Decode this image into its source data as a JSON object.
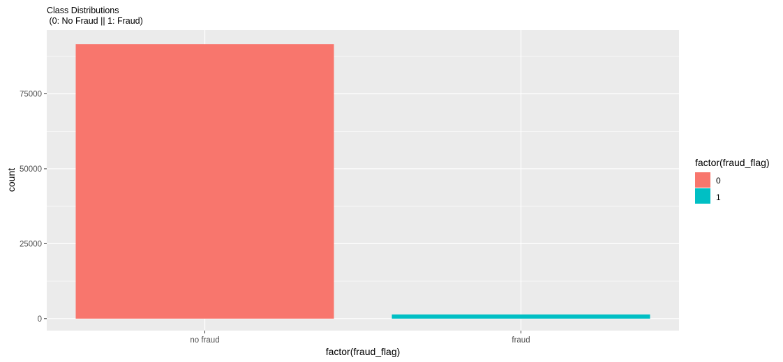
{
  "chart_data": {
    "type": "bar",
    "title": "Class Distributions",
    "subtitle": " (0: No Fraud || 1: Fraud)",
    "xlabel": "factor(fraud_flag)",
    "ylabel": "count",
    "categories": [
      "no fraud",
      "fraud"
    ],
    "values": [
      91600,
      1400
    ],
    "fill_groups": [
      "0",
      "1"
    ],
    "ylim": [
      -4000,
      96300
    ],
    "yticks": [
      0,
      25000,
      50000,
      75000
    ],
    "ytick_labels": [
      "0",
      "25000",
      "50000",
      "75000"
    ],
    "grid": true,
    "legend": {
      "title": "factor(fraud_flag)",
      "placement": "right",
      "entries": [
        {
          "label": "0",
          "color": "#F8766D"
        },
        {
          "label": "1",
          "color": "#00BFC4"
        }
      ]
    },
    "colors": {
      "panel": "#EBEBEB",
      "grid": "#FFFFFF",
      "bar_0": "#F8766D",
      "bar_1": "#00BFC4"
    }
  }
}
